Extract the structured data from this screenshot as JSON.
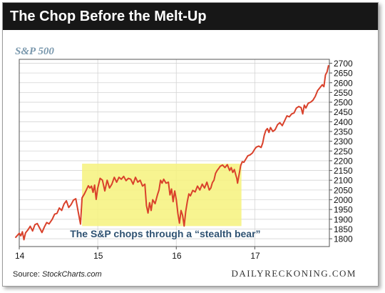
{
  "chart_data": {
    "type": "line",
    "title": "The Chop Before the Melt-Up",
    "subtitle": "S&P 500",
    "xlabel": "",
    "ylabel": "",
    "x_ticks": [
      "14",
      "15",
      "16",
      "17"
    ],
    "x_tick_values": [
      2014.0,
      2015.0,
      2016.0,
      2017.0
    ],
    "xlim": [
      2014.0,
      2017.95
    ],
    "y_ticks": [
      1800,
      1850,
      1900,
      1950,
      2000,
      2050,
      2100,
      2150,
      2200,
      2250,
      2300,
      2350,
      2400,
      2450,
      2500,
      2550,
      2600,
      2650,
      2700
    ],
    "ylim": [
      1760,
      2720
    ],
    "grid": true,
    "annotation": {
      "text": "The S&P chops through a “stealth bear”",
      "region_x": [
        2014.8,
        2016.83
      ],
      "region_y": [
        1865,
        2185
      ],
      "color": "#f6f27c"
    },
    "series": [
      {
        "color": "#d9412b",
        "points": [
          [
            2013.95,
            1805
          ],
          [
            2014.0,
            1828
          ],
          [
            2014.02,
            1815
          ],
          [
            2014.04,
            1836
          ],
          [
            2014.06,
            1795
          ],
          [
            2014.08,
            1830
          ],
          [
            2014.11,
            1845
          ],
          [
            2014.14,
            1864
          ],
          [
            2014.17,
            1840
          ],
          [
            2014.2,
            1872
          ],
          [
            2014.23,
            1878
          ],
          [
            2014.26,
            1855
          ],
          [
            2014.29,
            1832
          ],
          [
            2014.32,
            1860
          ],
          [
            2014.35,
            1883
          ],
          [
            2014.38,
            1876
          ],
          [
            2014.42,
            1900
          ],
          [
            2014.45,
            1926
          ],
          [
            2014.48,
            1930
          ],
          [
            2014.51,
            1958
          ],
          [
            2014.54,
            1945
          ],
          [
            2014.57,
            1978
          ],
          [
            2014.6,
            1995
          ],
          [
            2014.63,
            1960
          ],
          [
            2014.66,
            1975
          ],
          [
            2014.69,
            1998
          ],
          [
            2014.72,
            2005
          ],
          [
            2014.75,
            1940
          ],
          [
            2014.78,
            1875
          ],
          [
            2014.8,
            2010
          ],
          [
            2014.83,
            2030
          ],
          [
            2014.86,
            2055
          ],
          [
            2014.88,
            2072
          ],
          [
            2014.9,
            2060
          ],
          [
            2014.92,
            2070
          ],
          [
            2014.94,
            2038
          ],
          [
            2014.96,
            2075
          ],
          [
            2014.98,
            2002
          ],
          [
            2015.0,
            2060
          ],
          [
            2015.03,
            2110
          ],
          [
            2015.06,
            2100
          ],
          [
            2015.09,
            2045
          ],
          [
            2015.12,
            2100
          ],
          [
            2015.15,
            2060
          ],
          [
            2015.18,
            2080
          ],
          [
            2015.21,
            2115
          ],
          [
            2015.24,
            2090
          ],
          [
            2015.27,
            2115
          ],
          [
            2015.3,
            2105
          ],
          [
            2015.33,
            2120
          ],
          [
            2015.36,
            2098
          ],
          [
            2015.39,
            2110
          ],
          [
            2015.42,
            2105
          ],
          [
            2015.45,
            2080
          ],
          [
            2015.48,
            2115
          ],
          [
            2015.51,
            2090
          ],
          [
            2015.54,
            2100
          ],
          [
            2015.57,
            2070
          ],
          [
            2015.6,
            2080
          ],
          [
            2015.62,
            1970
          ],
          [
            2015.64,
            1932
          ],
          [
            2015.66,
            1985
          ],
          [
            2015.68,
            1945
          ],
          [
            2015.7,
            2000
          ],
          [
            2015.73,
            1980
          ],
          [
            2015.76,
            2025
          ],
          [
            2015.78,
            2050
          ],
          [
            2015.8,
            2100
          ],
          [
            2015.82,
            2085
          ],
          [
            2015.84,
            2105
          ],
          [
            2015.87,
            2085
          ],
          [
            2015.9,
            2090
          ],
          [
            2015.92,
            2025
          ],
          [
            2015.94,
            2055
          ],
          [
            2015.96,
            1990
          ],
          [
            2015.98,
            2045
          ],
          [
            2016.0,
            2000
          ],
          [
            2016.02,
            1930
          ],
          [
            2016.04,
            1880
          ],
          [
            2016.06,
            1945
          ],
          [
            2016.08,
            1920
          ],
          [
            2016.1,
            1865
          ],
          [
            2016.12,
            1940
          ],
          [
            2016.14,
            1990
          ],
          [
            2016.16,
            2030
          ],
          [
            2016.18,
            2020
          ],
          [
            2016.21,
            2048
          ],
          [
            2016.24,
            2040
          ],
          [
            2016.27,
            2070
          ],
          [
            2016.3,
            2050
          ],
          [
            2016.33,
            2080
          ],
          [
            2016.36,
            2060
          ],
          [
            2016.39,
            2090
          ],
          [
            2016.42,
            2050
          ],
          [
            2016.44,
            2060
          ],
          [
            2016.46,
            2088
          ],
          [
            2016.48,
            2100
          ],
          [
            2016.5,
            2135
          ],
          [
            2016.52,
            2150
          ],
          [
            2016.54,
            2160
          ],
          [
            2016.56,
            2172
          ],
          [
            2016.59,
            2178
          ],
          [
            2016.62,
            2165
          ],
          [
            2016.65,
            2180
          ],
          [
            2016.68,
            2150
          ],
          [
            2016.7,
            2165
          ],
          [
            2016.72,
            2140
          ],
          [
            2016.74,
            2155
          ],
          [
            2016.76,
            2125
          ],
          [
            2016.77,
            2110
          ],
          [
            2016.78,
            2085
          ],
          [
            2016.8,
            2130
          ],
          [
            2016.82,
            2175
          ],
          [
            2016.84,
            2195
          ],
          [
            2016.86,
            2192
          ],
          [
            2016.88,
            2205
          ],
          [
            2016.91,
            2225
          ],
          [
            2016.94,
            2230
          ],
          [
            2016.97,
            2240
          ],
          [
            2017.0,
            2260
          ],
          [
            2017.02,
            2270
          ],
          [
            2017.05,
            2275
          ],
          [
            2017.08,
            2268
          ],
          [
            2017.1,
            2290
          ],
          [
            2017.12,
            2330
          ],
          [
            2017.14,
            2355
          ],
          [
            2017.16,
            2365
          ],
          [
            2017.18,
            2345
          ],
          [
            2017.2,
            2370
          ],
          [
            2017.23,
            2350
          ],
          [
            2017.26,
            2360
          ],
          [
            2017.29,
            2385
          ],
          [
            2017.32,
            2395
          ],
          [
            2017.35,
            2380
          ],
          [
            2017.38,
            2405
          ],
          [
            2017.41,
            2430
          ],
          [
            2017.44,
            2425
          ],
          [
            2017.47,
            2440
          ],
          [
            2017.5,
            2445
          ],
          [
            2017.53,
            2470
          ],
          [
            2017.56,
            2478
          ],
          [
            2017.59,
            2472
          ],
          [
            2017.61,
            2440
          ],
          [
            2017.63,
            2485
          ],
          [
            2017.65,
            2470
          ],
          [
            2017.68,
            2495
          ],
          [
            2017.71,
            2500
          ],
          [
            2017.74,
            2510
          ],
          [
            2017.77,
            2530
          ],
          [
            2017.8,
            2560
          ],
          [
            2017.83,
            2575
          ],
          [
            2017.86,
            2590
          ],
          [
            2017.88,
            2580
          ],
          [
            2017.9,
            2640
          ],
          [
            2017.92,
            2655
          ],
          [
            2017.94,
            2690
          ]
        ]
      }
    ]
  },
  "source": {
    "prefix": "Source: ",
    "site": "StockCharts.com"
  },
  "brand": "DAILYRECKONING.COM"
}
